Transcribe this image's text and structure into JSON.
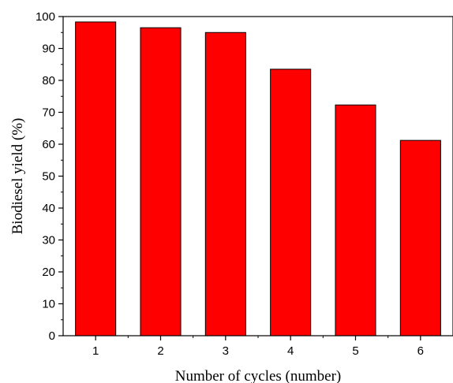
{
  "chart_data": {
    "type": "bar",
    "title": "",
    "xlabel": "Number of cycles (number)",
    "ylabel": "Biodiesel yield (%)",
    "categories": [
      "1",
      "2",
      "3",
      "4",
      "5",
      "6"
    ],
    "values": [
      98.3,
      96.5,
      95.0,
      83.5,
      72.3,
      61.2
    ],
    "ylim": [
      0,
      100
    ],
    "yticks": [
      "0",
      "10",
      "20",
      "30",
      "40",
      "50",
      "60",
      "70",
      "80",
      "90",
      "100"
    ],
    "bar_color": "#ff0000",
    "bar_edge_color": "#000000",
    "grid": false,
    "legend": "none"
  }
}
